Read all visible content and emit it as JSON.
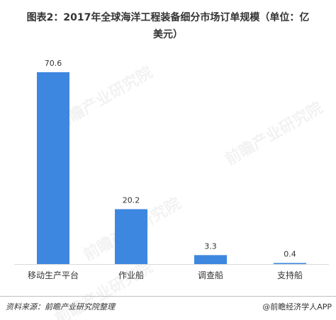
{
  "title_line1": "图表2：2017年全球海洋工程装备细分市场订单规模（单位：亿",
  "title_line2": "美元）",
  "source": "资料来源：前瞻产业研究院整理",
  "brand": "@前瞻经济学人APP",
  "watermark": "前瞻产业研究院",
  "chart_data": {
    "type": "bar",
    "categories": [
      "移动生产平台",
      "作业船",
      "调查船",
      "支持船"
    ],
    "values": [
      70.6,
      20.2,
      3.3,
      0.4
    ],
    "title": "图表2：2017年全球海洋工程装备细分市场订单规模（单位：亿美元）",
    "xlabel": "",
    "ylabel": "",
    "ylim": [
      0,
      70.6
    ],
    "grid": false,
    "legend": "none",
    "bar_color": "#3e87e0"
  }
}
